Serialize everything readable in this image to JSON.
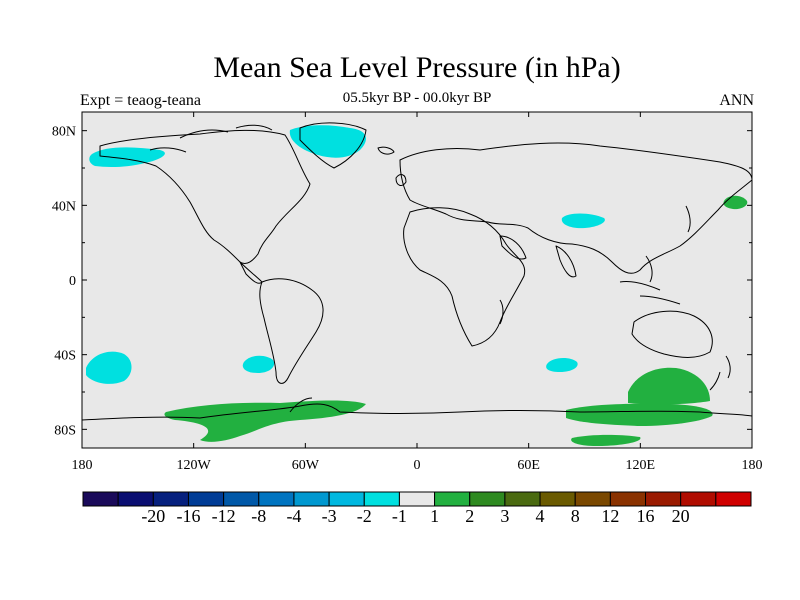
{
  "map": {
    "title": "Mean Sea Level Pressure (in hPa)",
    "left_label": "Expt = teaog-teana",
    "center_label": "05.5kyr BP - 00.0kyr BP",
    "right_label": "ANN",
    "lon_ticks": [
      "180",
      "120W",
      "60W",
      "0",
      "60E",
      "120E",
      "180"
    ],
    "lat_ticks": [
      "80N",
      "40N",
      "0",
      "40S",
      "80S"
    ],
    "background_color": "#e8e8e8",
    "contour_regions": [
      {
        "name": "negative-arctic-canada",
        "color": "#00e0e0"
      },
      {
        "name": "negative-greenland",
        "color": "#00e0e0"
      },
      {
        "name": "negative-central-asia",
        "color": "#00e0e0"
      },
      {
        "name": "negative-south-pacific",
        "color": "#00e0e0"
      },
      {
        "name": "negative-southeast-pacific",
        "color": "#00e0e0"
      },
      {
        "name": "negative-south-indian",
        "color": "#00e0e0"
      },
      {
        "name": "positive-north-pacific",
        "color": "#22b040"
      },
      {
        "name": "positive-southern-ocean-australia",
        "color": "#22b040"
      },
      {
        "name": "positive-antarctic-west",
        "color": "#22b040"
      },
      {
        "name": "positive-antarctic-east",
        "color": "#22b040"
      }
    ]
  },
  "colorbar": {
    "colors": [
      "#1a0a5a",
      "#0a0e72",
      "#06207e",
      "#003c96",
      "#0058a8",
      "#0074c0",
      "#0098d0",
      "#00b8e0",
      "#00e0e0",
      "#e8e8e8",
      "#22b040",
      "#2e8a20",
      "#4a6a10",
      "#6a5a00",
      "#7a4800",
      "#8a3200",
      "#9a1a00",
      "#b00c00",
      "#d00000"
    ],
    "labels": [
      "-20",
      "-16",
      "-12",
      "-8",
      "-4",
      "-3",
      "-2",
      "-1",
      "1",
      "2",
      "3",
      "4",
      "8",
      "12",
      "16",
      "20"
    ]
  }
}
